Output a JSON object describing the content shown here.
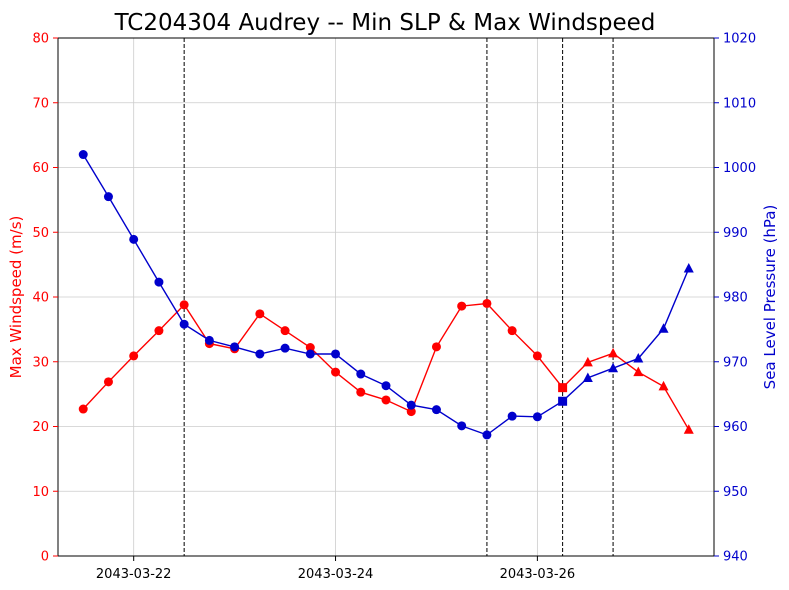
{
  "chart_data": {
    "type": "line",
    "title": "TC204304 Audrey -- Min SLP & Max Windspeed",
    "xlabel": "",
    "ylabel_left": "Max Windspeed (m/s)",
    "ylabel_right": "Sea Level Pressure (hPa)",
    "x_tick_labels": [
      "2043-03-22",
      "2043-03-24",
      "2043-03-26"
    ],
    "x_ticks": [
      "2043-03-22T00:00",
      "2043-03-24T00:00",
      "2043-03-26T00:00"
    ],
    "x_range": [
      "2043-03-21T06:00",
      "2043-03-27T18:00"
    ],
    "ylim_left": [
      0,
      80
    ],
    "ylim_right": [
      940,
      1020
    ],
    "yticks_left": [
      0,
      10,
      20,
      30,
      40,
      50,
      60,
      70,
      80
    ],
    "yticks_right": [
      940,
      950,
      960,
      970,
      980,
      990,
      1000,
      1010,
      1020
    ],
    "grid": true,
    "vertical_lines": [
      "2043-03-22T12:00",
      "2043-03-25T12:00",
      "2043-03-26T06:00",
      "2043-03-26T18:00"
    ],
    "x": [
      "2043-03-21T12:00",
      "2043-03-21T18:00",
      "2043-03-22T00:00",
      "2043-03-22T06:00",
      "2043-03-22T12:00",
      "2043-03-22T18:00",
      "2043-03-23T00:00",
      "2043-03-23T06:00",
      "2043-03-23T12:00",
      "2043-03-23T18:00",
      "2043-03-24T00:00",
      "2043-03-24T06:00",
      "2043-03-24T12:00",
      "2043-03-24T18:00",
      "2043-03-25T00:00",
      "2043-03-25T06:00",
      "2043-03-25T12:00",
      "2043-03-25T18:00",
      "2043-03-26T00:00",
      "2043-03-26T06:00",
      "2043-03-26T12:00",
      "2043-03-26T18:00",
      "2043-03-27T00:00",
      "2043-03-27T06:00",
      "2043-03-27T12:00"
    ],
    "markers": [
      "circle",
      "circle",
      "circle",
      "circle",
      "circle",
      "circle",
      "circle",
      "circle",
      "circle",
      "circle",
      "circle",
      "circle",
      "circle",
      "circle",
      "circle",
      "circle",
      "circle",
      "circle",
      "circle",
      "square",
      "triangle",
      "triangle",
      "triangle",
      "triangle",
      "triangle"
    ],
    "series": [
      {
        "axis": "left",
        "color": "#ff0000",
        "values": [
          22.7,
          26.9,
          30.9,
          34.8,
          38.8,
          32.8,
          32.0,
          37.4,
          34.8,
          32.2,
          28.4,
          25.3,
          24.1,
          22.3,
          32.3,
          38.6,
          39.0,
          34.8,
          30.9,
          26.0,
          29.9,
          31.3,
          28.4,
          26.2,
          19.5
        ]
      },
      {
        "axis": "right",
        "color": "#0000cc",
        "values": [
          1002.0,
          995.5,
          988.9,
          982.3,
          975.8,
          973.3,
          972.3,
          971.2,
          972.1,
          971.2,
          971.2,
          968.1,
          966.3,
          963.3,
          962.6,
          960.1,
          958.7,
          961.6,
          961.5,
          963.9,
          967.5,
          969.0,
          970.5,
          975.1,
          984.4
        ]
      }
    ]
  },
  "colors": {
    "wind": "#ff0000",
    "pressure": "#0000cc",
    "grid": "#cccccc",
    "frame": "#000000"
  }
}
